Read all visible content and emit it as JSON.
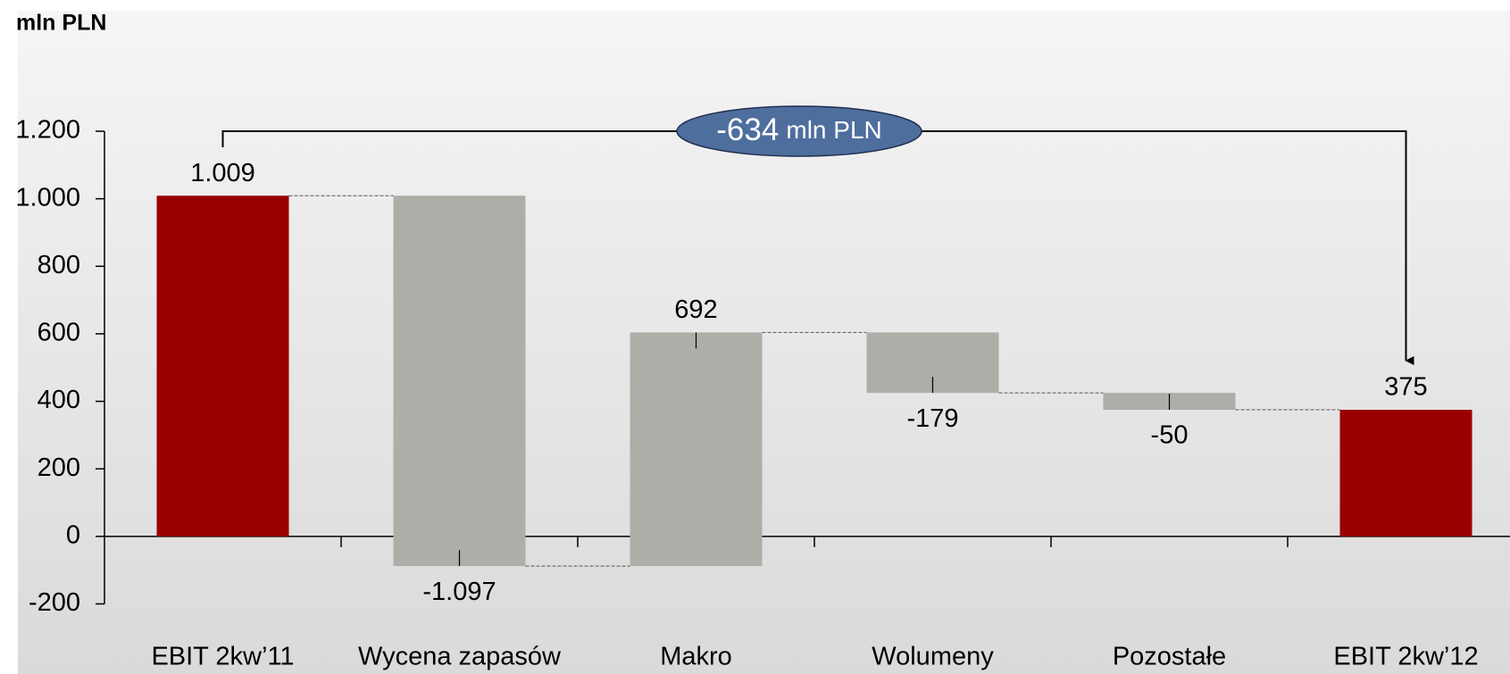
{
  "chart_data": {
    "type": "waterfall",
    "y_label": "mln PLN",
    "annotation_value": "-634",
    "annotation_unit": "mln PLN",
    "categories": [
      "EBIT 2kw’11",
      "Wycena zapasów",
      "Makro",
      "Wolumeny",
      "Pozostałe",
      "EBIT 2kw’12"
    ],
    "values": [
      1009,
      -1097,
      692,
      -179,
      -50,
      375
    ],
    "value_labels": [
      "1.009",
      "-1.097",
      "692",
      "-179",
      "-50",
      "375"
    ],
    "kinds": [
      "total",
      "delta",
      "delta",
      "delta",
      "delta",
      "total"
    ],
    "total_color": "#990000",
    "delta_color": "#aeaea9",
    "ylim": [
      -200,
      1200
    ],
    "yticks": [
      -200,
      0,
      200,
      400,
      600,
      800,
      {
        "value": 1000,
        "label": "1.000"
      },
      {
        "value": 1200,
        "label": "1.200"
      }
    ]
  }
}
